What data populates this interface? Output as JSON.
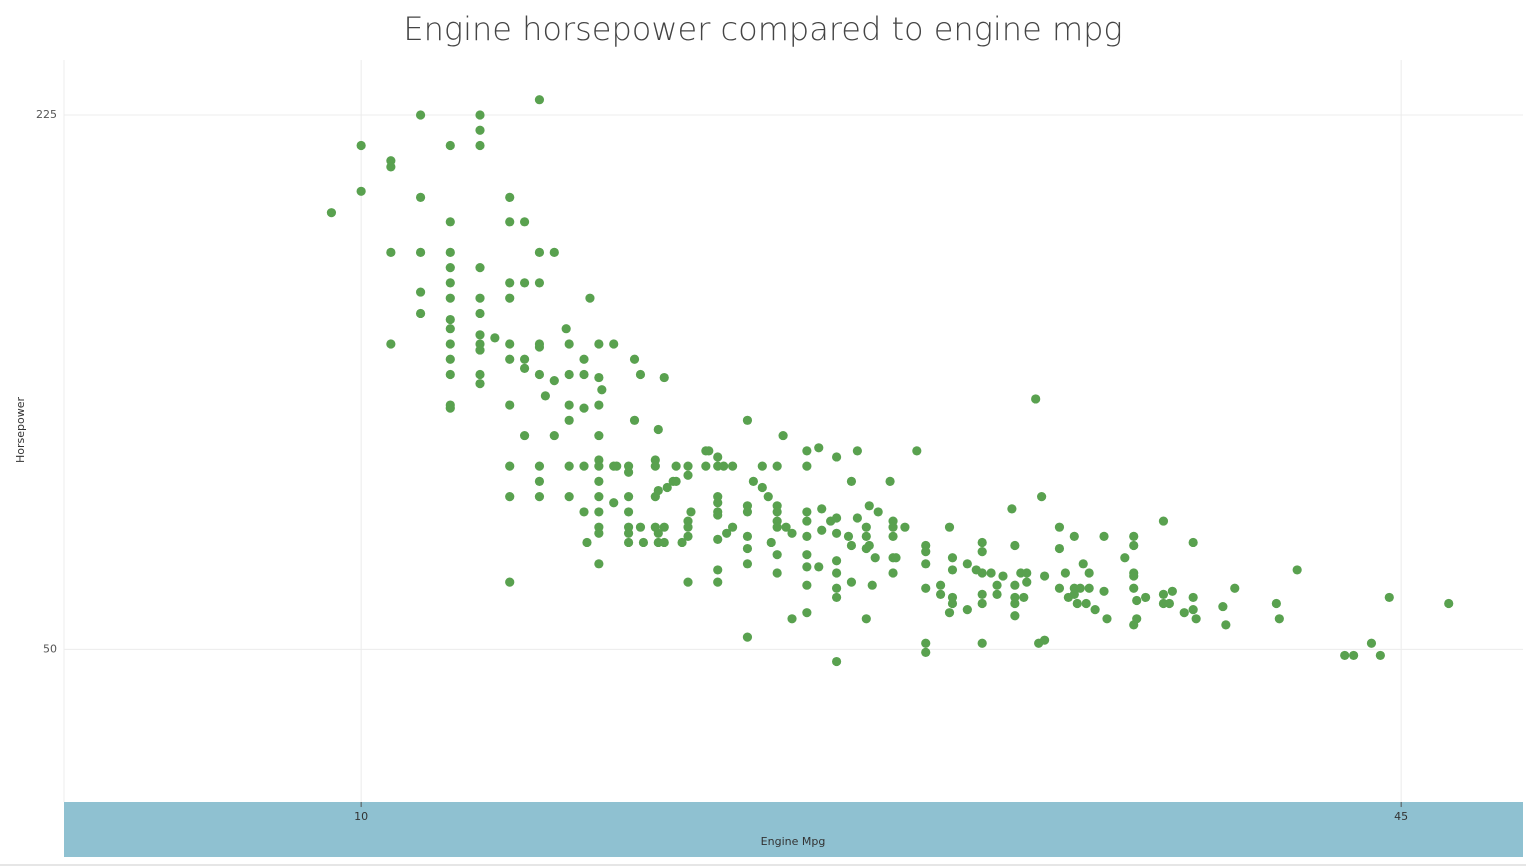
{
  "chart_data": {
    "type": "scatter",
    "title": "Engine horsepower compared to engine mpg",
    "x_label": "Engine Mpg",
    "y_label": "Horsepower",
    "color": "#59a14f",
    "xlim": [
      0,
      49.1
    ],
    "xticks": [
      10,
      45
    ],
    "ylim": [
      0,
      243
    ],
    "yticks": [
      50,
      225
    ],
    "grid": true,
    "x": [
      9,
      10,
      10,
      11,
      11,
      11,
      11,
      12,
      12,
      12,
      12,
      12,
      13,
      13,
      13,
      13,
      13,
      13,
      13,
      13,
      13,
      13,
      13,
      13,
      13,
      14,
      14,
      14,
      14,
      14,
      14,
      14,
      14,
      14,
      14,
      14,
      14.5,
      15,
      15,
      15,
      15,
      15,
      15,
      15,
      15,
      15,
      15,
      15.5,
      15.5,
      15.5,
      15.5,
      15.5,
      16,
      16,
      16,
      16,
      16,
      16,
      16,
      16,
      16,
      16.2,
      16.5,
      16.5,
      16.5,
      16.9,
      17,
      17,
      17,
      17,
      17,
      17,
      17.5,
      17.5,
      17.5,
      17.5,
      17.5,
      17.6,
      17.7,
      18,
      18,
      18,
      18,
      18,
      18,
      18,
      18,
      18,
      18,
      18,
      18,
      18.1,
      18.5,
      18.5,
      18.5,
      18.6,
      19,
      19,
      19,
      19,
      19,
      19,
      19,
      19.2,
      19.2,
      19.4,
      19.4,
      19.5,
      19.9,
      19.9,
      19.9,
      19.9,
      20,
      20,
      20,
      20,
      20.2,
      20.2,
      20.2,
      20.3,
      20.5,
      20.6,
      20.6,
      20.8,
      21,
      21,
      21,
      21,
      21,
      21,
      21.1,
      21.6,
      21.7,
      21.6,
      22,
      22,
      22,
      22,
      22,
      22,
      22,
      22,
      22,
      22.2,
      22.3,
      22.5,
      22.5,
      23,
      23,
      23,
      23,
      23,
      23,
      23,
      23.2,
      23.5,
      23.5,
      23.7,
      23.8,
      24,
      24,
      24,
      24,
      24,
      24,
      24,
      24.2,
      24.3,
      24.5,
      24.5,
      25,
      25,
      25,
      25,
      25,
      25,
      25,
      25,
      25,
      25.4,
      25.4,
      25.5,
      25.5,
      25.8,
      26,
      26,
      26,
      26,
      26,
      26,
      26,
      26,
      26.4,
      26.5,
      26.5,
      26.5,
      26.7,
      26.7,
      27,
      27,
      27,
      27,
      27.1,
      27.1,
      27.2,
      27.3,
      27.4,
      27.8,
      27.9,
      27.9,
      27.9,
      27.9,
      27.9,
      28,
      28.3,
      28.7,
      29,
      29,
      29,
      29,
      29,
      29,
      29.5,
      29.5,
      29.8,
      29.8,
      29.9,
      29.9,
      29.9,
      29.9,
      30.4,
      30.4,
      30.7,
      30.9,
      30.9,
      30.9,
      30.9,
      30.9,
      30.9,
      31.2,
      31.4,
      31.4,
      31.6,
      31.9,
      32,
      32,
      32,
      32,
      32,
      32.2,
      32.3,
      32.4,
      32.4,
      32.7,
      32.8,
      32.9,
      33,
      33,
      33.5,
      33.5,
      33.5,
      33.7,
      33.8,
      34,
      34,
      34,
      34.1,
      34.2,
      34.3,
      34.4,
      34.5,
      34.5,
      34.7,
      35,
      35,
      35.1,
      35.7,
      36,
      36,
      36,
      36,
      36,
      36,
      36.1,
      36.1,
      36.4,
      37,
      37,
      37,
      37.2,
      37.3,
      37.7,
      38,
      38,
      38,
      38.1,
      39,
      39.1,
      39.4,
      40.8,
      40.9,
      41.5,
      43.1,
      43.4,
      44,
      44.3,
      44.6,
      46.6
    ],
    "values": [
      193,
      215,
      200,
      210,
      208,
      180,
      150,
      225,
      198,
      180,
      167,
      160,
      215,
      190,
      180,
      175,
      170,
      165,
      158,
      155,
      150,
      145,
      140,
      130,
      129,
      225,
      220,
      215,
      175,
      165,
      160,
      153,
      150,
      148,
      140,
      137,
      152,
      198,
      190,
      170,
      165,
      150,
      145,
      130,
      110,
      100,
      72,
      190,
      170,
      145,
      142,
      120,
      230,
      180,
      170,
      150,
      149,
      140,
      110,
      105,
      100,
      133,
      180,
      138,
      120,
      155,
      150,
      140,
      130,
      125,
      110,
      100,
      145,
      140,
      129,
      110,
      95,
      85,
      165,
      150,
      139,
      130,
      120,
      112,
      110,
      105,
      100,
      95,
      90,
      88,
      78,
      135,
      150,
      110,
      98,
      110,
      110,
      108,
      100,
      95,
      90,
      88,
      85,
      145,
      125,
      140,
      90,
      85,
      112,
      110,
      100,
      90,
      122,
      102,
      88,
      85,
      139,
      90,
      85,
      103,
      105,
      110,
      105,
      85,
      110,
      107,
      92,
      90,
      87,
      72,
      95,
      115,
      115,
      110,
      113,
      110,
      100,
      98,
      95,
      94,
      86,
      76,
      72,
      110,
      88,
      110,
      90,
      125,
      97,
      95,
      87,
      83,
      78,
      54,
      105,
      110,
      103,
      100,
      85,
      110,
      97,
      95,
      92,
      90,
      81,
      75,
      120,
      90,
      60,
      88,
      115,
      110,
      95,
      92,
      87,
      81,
      77,
      71,
      62,
      116,
      77,
      96,
      89,
      92,
      113,
      93,
      88,
      79,
      75,
      70,
      67,
      46,
      87,
      72,
      105,
      84,
      115,
      93,
      90,
      87,
      83,
      60,
      97,
      84,
      71,
      80,
      95,
      105,
      92,
      90,
      87,
      80,
      75,
      80,
      90,
      115,
      84,
      82,
      78,
      70,
      52,
      49,
      71,
      68,
      90,
      62,
      80,
      76,
      67,
      65,
      78,
      63,
      76,
      85,
      82,
      75,
      68,
      65,
      52,
      75,
      68,
      71,
      74,
      96,
      84,
      71,
      67,
      65,
      61,
      75,
      67,
      75,
      72,
      132,
      52,
      100,
      53,
      74,
      90,
      83,
      70,
      75,
      67,
      87,
      70,
      68,
      65,
      70,
      78,
      65,
      75,
      70,
      63,
      87,
      69,
      60,
      80,
      87,
      84,
      75,
      74,
      70,
      58,
      60,
      66,
      67,
      92,
      68,
      65,
      65,
      69,
      62,
      85,
      67,
      63,
      60,
      64,
      58,
      70,
      65,
      60,
      76,
      48,
      48,
      52,
      48,
      67,
      65
    ]
  }
}
